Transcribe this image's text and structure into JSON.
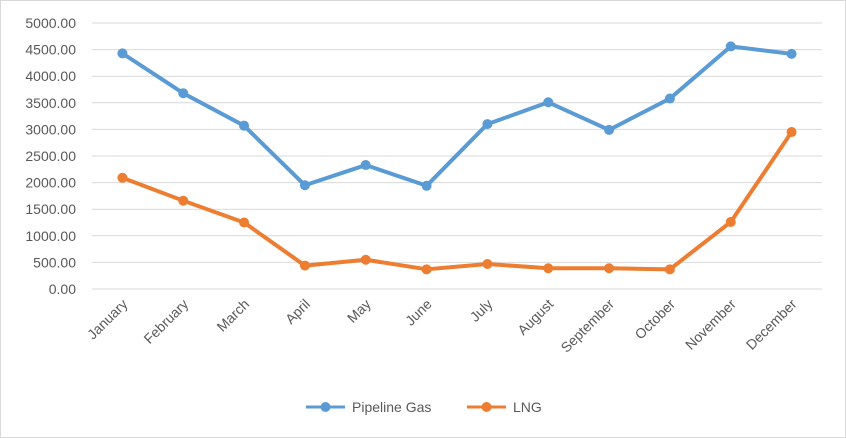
{
  "chart_data": {
    "type": "line",
    "title": "",
    "xlabel": "",
    "ylabel": "",
    "categories": [
      "January",
      "February",
      "March",
      "April",
      "May",
      "June",
      "July",
      "August",
      "September",
      "October",
      "November",
      "December"
    ],
    "y_ticks": [
      "0.00",
      "500.00",
      "1000.00",
      "1500.00",
      "2000.00",
      "2500.00",
      "3000.00",
      "3500.00",
      "4000.00",
      "4500.00",
      "5000.00"
    ],
    "ylim": [
      0,
      5000
    ],
    "grid": true,
    "legend_position": "bottom",
    "series": [
      {
        "name": "Pipeline Gas",
        "color": "#5b9bd5",
        "values": [
          4430,
          3680,
          3070,
          1950,
          2330,
          1940,
          3100,
          3510,
          2990,
          3580,
          4560,
          4420
        ]
      },
      {
        "name": "LNG",
        "color": "#ed7d31",
        "values": [
          2090,
          1660,
          1250,
          440,
          550,
          370,
          470,
          390,
          390,
          370,
          1260,
          2950
        ]
      }
    ]
  }
}
